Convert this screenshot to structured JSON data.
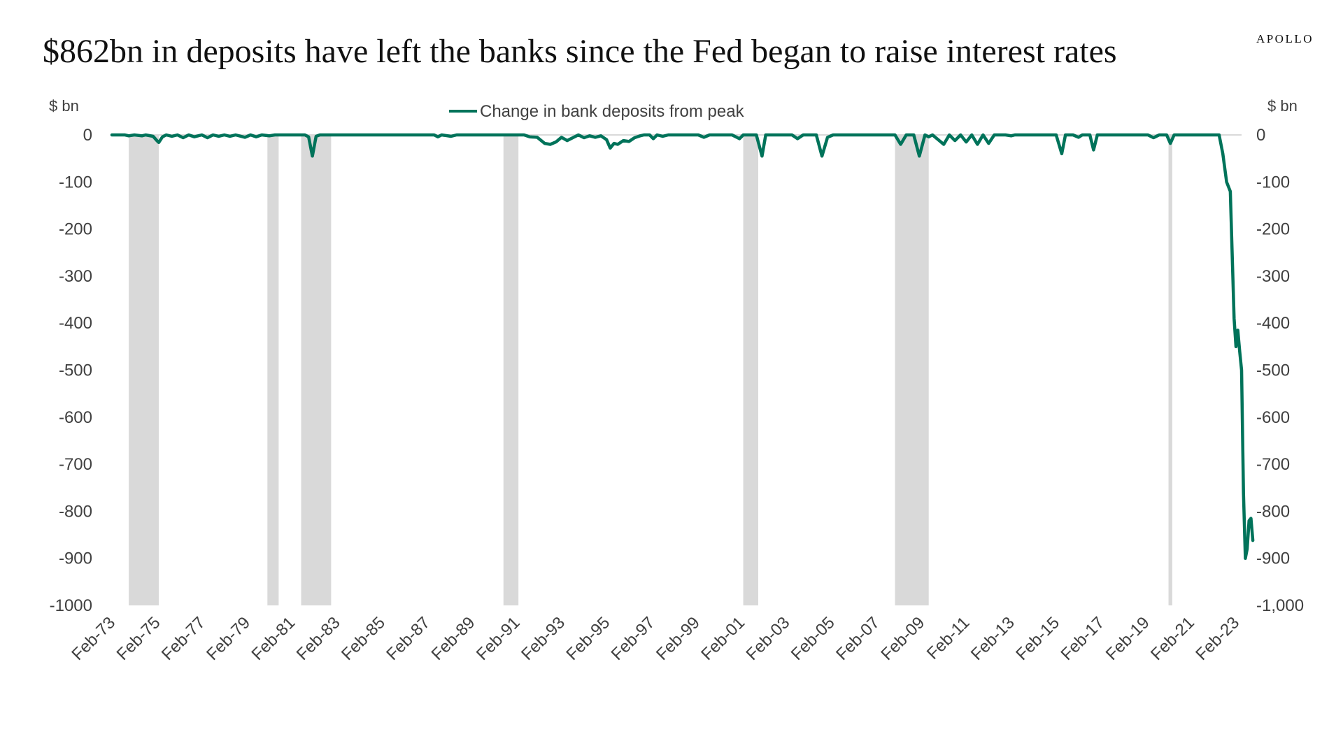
{
  "header": {
    "title": "$862bn in deposits have left the banks since the Fed began to raise interest rates",
    "brand": "APOLLO"
  },
  "chart_data": {
    "type": "line",
    "title": "$862bn in deposits have left the banks since the Fed began to raise interest rates",
    "ylabel_left": "$ bn",
    "ylabel_right": "$ bn",
    "ylim": [
      -1000,
      0
    ],
    "xlim": [
      "1973-02",
      "2023-05"
    ],
    "left_tick_labels": [
      "0",
      "-100",
      "-200",
      "-300",
      "-400",
      "-500",
      "-600",
      "-700",
      "-800",
      "-900",
      "-1000"
    ],
    "right_tick_labels": [
      "0",
      "-100",
      "-200",
      "-300",
      "-400",
      "-500",
      "-600",
      "-700",
      "-800",
      "-900",
      "-1,000"
    ],
    "y_ticks": [
      0,
      -100,
      -200,
      -300,
      -400,
      -500,
      -600,
      -700,
      -800,
      -900,
      -1000
    ],
    "x_tick_labels": [
      "Feb-73",
      "Feb-75",
      "Feb-77",
      "Feb-79",
      "Feb-81",
      "Feb-83",
      "Feb-85",
      "Feb-87",
      "Feb-89",
      "Feb-91",
      "Feb-93",
      "Feb-95",
      "Feb-97",
      "Feb-99",
      "Feb-01",
      "Feb-03",
      "Feb-05",
      "Feb-07",
      "Feb-09",
      "Feb-11",
      "Feb-13",
      "Feb-15",
      "Feb-17",
      "Feb-19",
      "Feb-21",
      "Feb-23"
    ],
    "legend": {
      "position": "top-center"
    },
    "grid": false,
    "recession_shading": [
      {
        "start": "1973-11",
        "end": "1975-03"
      },
      {
        "start": "1980-01",
        "end": "1980-07"
      },
      {
        "start": "1981-07",
        "end": "1982-11"
      },
      {
        "start": "1990-07",
        "end": "1991-03"
      },
      {
        "start": "2001-03",
        "end": "2001-11"
      },
      {
        "start": "2007-12",
        "end": "2009-06"
      },
      {
        "start": "2020-02",
        "end": "2020-04"
      }
    ],
    "series": [
      {
        "name": "Change in bank deposits from peak",
        "color": "#00735a",
        "points": [
          [
            "1973-02",
            0
          ],
          [
            "1973-09",
            0
          ],
          [
            "1973-11",
            -2
          ],
          [
            "1974-02",
            0
          ],
          [
            "1974-06",
            -2
          ],
          [
            "1974-08",
            0
          ],
          [
            "1974-12",
            -3
          ],
          [
            "1975-02",
            -12
          ],
          [
            "1975-03",
            -16
          ],
          [
            "1975-05",
            -4
          ],
          [
            "1975-07",
            0
          ],
          [
            "1975-10",
            -3
          ],
          [
            "1976-01",
            0
          ],
          [
            "1976-04",
            -6
          ],
          [
            "1976-07",
            0
          ],
          [
            "1976-10",
            -4
          ],
          [
            "1977-02",
            0
          ],
          [
            "1977-05",
            -6
          ],
          [
            "1977-08",
            0
          ],
          [
            "1977-11",
            -3
          ],
          [
            "1978-02",
            0
          ],
          [
            "1978-05",
            -3
          ],
          [
            "1978-08",
            0
          ],
          [
            "1979-01",
            -5
          ],
          [
            "1979-04",
            0
          ],
          [
            "1979-07",
            -4
          ],
          [
            "1979-10",
            0
          ],
          [
            "1980-02",
            -2
          ],
          [
            "1980-05",
            0
          ],
          [
            "1980-08",
            0
          ],
          [
            "1981-09",
            0
          ],
          [
            "1981-11",
            -4
          ],
          [
            "1982-01",
            -45
          ],
          [
            "1982-03",
            -3
          ],
          [
            "1982-05",
            0
          ],
          [
            "1987-06",
            0
          ],
          [
            "1987-08",
            -4
          ],
          [
            "1987-10",
            0
          ],
          [
            "1988-03",
            -3
          ],
          [
            "1988-06",
            0
          ],
          [
            "1991-06",
            0
          ],
          [
            "1991-09",
            -4
          ],
          [
            "1992-01",
            -5
          ],
          [
            "1992-05",
            -18
          ],
          [
            "1992-08",
            -20
          ],
          [
            "1992-11",
            -15
          ],
          [
            "1993-02",
            -5
          ],
          [
            "1993-05",
            -12
          ],
          [
            "1993-08",
            -6
          ],
          [
            "1993-11",
            0
          ],
          [
            "1994-02",
            -6
          ],
          [
            "1994-05",
            -2
          ],
          [
            "1994-08",
            -5
          ],
          [
            "1994-11",
            -2
          ],
          [
            "1995-02",
            -10
          ],
          [
            "1995-04",
            -28
          ],
          [
            "1995-06",
            -18
          ],
          [
            "1995-08",
            -20
          ],
          [
            "1995-11",
            -12
          ],
          [
            "1996-02",
            -14
          ],
          [
            "1996-05",
            -6
          ],
          [
            "1996-08",
            -2
          ],
          [
            "1996-10",
            0
          ],
          [
            "1997-01",
            0
          ],
          [
            "1997-03",
            -8
          ],
          [
            "1997-05",
            0
          ],
          [
            "1997-08",
            -3
          ],
          [
            "1997-11",
            0
          ],
          [
            "1999-03",
            0
          ],
          [
            "1999-06",
            -5
          ],
          [
            "1999-09",
            0
          ],
          [
            "2000-09",
            0
          ],
          [
            "2001-01",
            -8
          ],
          [
            "2001-03",
            0
          ],
          [
            "2001-10",
            0
          ],
          [
            "2002-01",
            -45
          ],
          [
            "2002-03",
            0
          ],
          [
            "2003-05",
            0
          ],
          [
            "2003-08",
            -8
          ],
          [
            "2003-11",
            0
          ],
          [
            "2004-06",
            0
          ],
          [
            "2004-09",
            -45
          ],
          [
            "2004-12",
            -5
          ],
          [
            "2005-03",
            0
          ],
          [
            "2007-12",
            0
          ],
          [
            "2008-03",
            -20
          ],
          [
            "2008-06",
            0
          ],
          [
            "2008-10",
            0
          ],
          [
            "2009-01",
            -45
          ],
          [
            "2009-04",
            0
          ],
          [
            "2009-06",
            -4
          ],
          [
            "2009-08",
            0
          ],
          [
            "2009-11",
            -10
          ],
          [
            "2010-02",
            -20
          ],
          [
            "2010-05",
            0
          ],
          [
            "2010-08",
            -12
          ],
          [
            "2010-11",
            0
          ],
          [
            "2011-02",
            -15
          ],
          [
            "2011-05",
            0
          ],
          [
            "2011-08",
            -20
          ],
          [
            "2011-11",
            0
          ],
          [
            "2012-02",
            -18
          ],
          [
            "2012-05",
            0
          ],
          [
            "2012-11",
            0
          ],
          [
            "2013-02",
            -2
          ],
          [
            "2013-04",
            0
          ],
          [
            "2015-02",
            0
          ],
          [
            "2015-05",
            -40
          ],
          [
            "2015-07",
            0
          ],
          [
            "2015-11",
            0
          ],
          [
            "2016-02",
            -5
          ],
          [
            "2016-04",
            0
          ],
          [
            "2016-08",
            0
          ],
          [
            "2016-10",
            -32
          ],
          [
            "2016-12",
            0
          ],
          [
            "2019-03",
            0
          ],
          [
            "2019-06",
            -6
          ],
          [
            "2019-09",
            0
          ],
          [
            "2020-01",
            0
          ],
          [
            "2020-03",
            -18
          ],
          [
            "2020-05",
            0
          ],
          [
            "2022-05",
            0
          ],
          [
            "2022-07",
            -40
          ],
          [
            "2022-09",
            -100
          ],
          [
            "2022-11",
            -120
          ],
          [
            "2023-01",
            -390
          ],
          [
            "2023-02",
            -450
          ],
          [
            "2023-03",
            -415
          ],
          [
            "2023-04",
            -460
          ],
          [
            "2023-05",
            -500
          ],
          [
            "2023-06",
            -760
          ],
          [
            "2023-07",
            -900
          ],
          [
            "2023-08",
            -880
          ],
          [
            "2023-09",
            -820
          ],
          [
            "2023-10",
            -815
          ],
          [
            "2023-11",
            -862
          ]
        ]
      }
    ]
  }
}
